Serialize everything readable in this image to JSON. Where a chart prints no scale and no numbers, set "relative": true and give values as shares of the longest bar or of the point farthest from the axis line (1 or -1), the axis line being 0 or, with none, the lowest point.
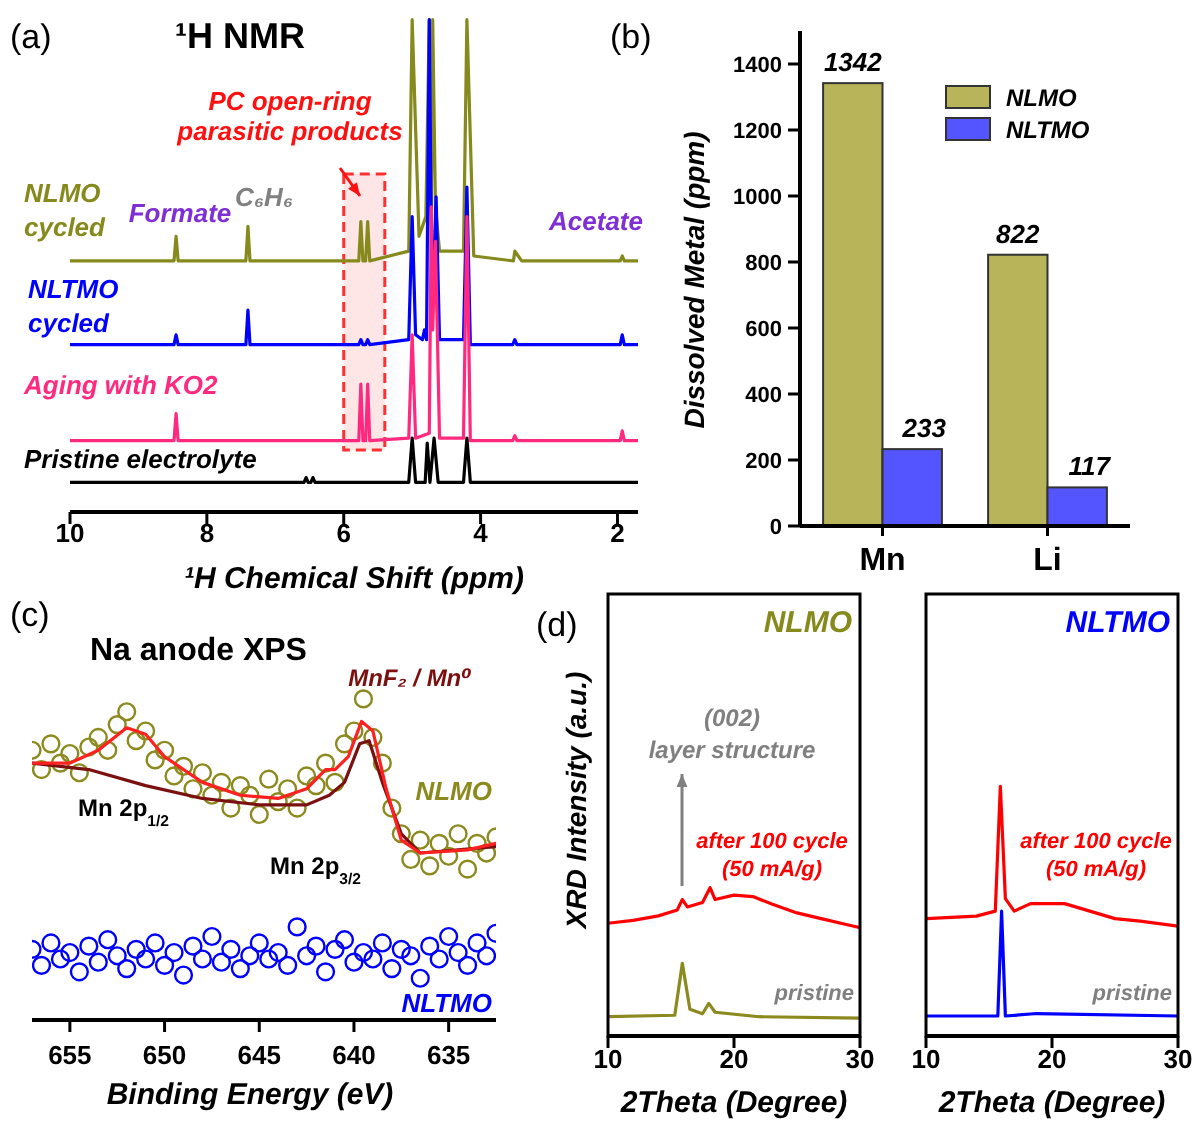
{
  "chart_data": [
    {
      "type": "line",
      "title": "¹H NMR",
      "xlabel": "¹H Chemical Shift (ppm)",
      "relative": true,
      "xlim": [
        10,
        1.7
      ],
      "xticks": [
        10,
        8,
        6,
        4,
        2
      ],
      "legend": false,
      "annotations": [
        "(a)",
        "Formate",
        "C₆H₆",
        "Acetate",
        "PC open-ring parasitic products"
      ],
      "bands": [
        {
          "axis": "x",
          "from": 6.0,
          "to": 5.4,
          "color": "#ff3030"
        }
      ],
      "series": [
        {
          "name": "NLMO cycled",
          "color": "#868a1c",
          "x": [
            10,
            8.48,
            8.45,
            8.42,
            7.43,
            7.4,
            7.37,
            5.78,
            5.75,
            5.72,
            5.68,
            5.65,
            5.62,
            5.05,
            5.0,
            4.9,
            4.8,
            4.75,
            4.72,
            4.7,
            4.66,
            4.6,
            4.25,
            4.2,
            4.1,
            3.52,
            3.5,
            3.45,
            3.4,
            1.96,
            1.93,
            1.9,
            1.7
          ],
          "values": [
            0.51,
            0.51,
            0.56,
            0.51,
            0.51,
            0.58,
            0.51,
            0.51,
            0.59,
            0.51,
            0.51,
            0.59,
            0.51,
            0.53,
            1,
            0.56,
            0.6,
            1,
            0.62,
            1,
            0.62,
            0.53,
            0.53,
            1,
            0.52,
            0.51,
            0.53,
            0.52,
            0.51,
            0.51,
            0.52,
            0.51,
            0.51
          ]
        },
        {
          "name": "NLTMO cycled",
          "color": "#0000ff",
          "x": [
            10,
            8.48,
            8.45,
            8.42,
            7.43,
            7.4,
            7.37,
            5.78,
            5.75,
            5.72,
            5.68,
            5.65,
            5.62,
            5.05,
            5.0,
            4.95,
            4.85,
            4.82,
            4.79,
            4.75,
            4.71,
            4.65,
            4.6,
            4.25,
            4.2,
            4.15,
            3.53,
            3.5,
            3.47,
            1.96,
            1.93,
            1.9,
            1.7
          ],
          "values": [
            0.34,
            0.34,
            0.36,
            0.34,
            0.34,
            0.41,
            0.34,
            0.34,
            0.35,
            0.34,
            0.34,
            0.35,
            0.34,
            0.35,
            0.6,
            0.36,
            0.35,
            0.37,
            0.35,
            1,
            0.4,
            0.64,
            0.35,
            0.35,
            0.66,
            0.34,
            0.34,
            0.35,
            0.34,
            0.34,
            0.36,
            0.34,
            0.34
          ]
        },
        {
          "name": "Aging with KO2",
          "color": "#ff2a80",
          "x": [
            10,
            8.48,
            8.45,
            8.42,
            5.78,
            5.75,
            5.72,
            5.68,
            5.65,
            5.62,
            5.05,
            5.0,
            4.95,
            4.75,
            4.72,
            4.7,
            4.66,
            4.6,
            4.25,
            4.2,
            4.15,
            3.53,
            3.5,
            3.47,
            1.96,
            1.93,
            1.9,
            1.7
          ],
          "values": [
            0.145,
            0.145,
            0.2,
            0.145,
            0.145,
            0.26,
            0.145,
            0.145,
            0.26,
            0.145,
            0.15,
            0.36,
            0.15,
            0.16,
            0.62,
            0.37,
            0.55,
            0.15,
            0.15,
            0.6,
            0.145,
            0.145,
            0.155,
            0.145,
            0.145,
            0.165,
            0.145,
            0.145
          ]
        },
        {
          "name": "Pristine electrolyte",
          "color": "#000000",
          "x": [
            10,
            6.58,
            6.55,
            6.52,
            6.48,
            6.45,
            6.42,
            5.05,
            5.0,
            4.95,
            4.81,
            4.78,
            4.74,
            4.68,
            4.62,
            4.25,
            4.2,
            4.15,
            1.7
          ],
          "values": [
            0.06,
            0.06,
            0.07,
            0.06,
            0.06,
            0.07,
            0.06,
            0.06,
            0.15,
            0.06,
            0.06,
            0.14,
            0.06,
            0.15,
            0.06,
            0.06,
            0.15,
            0.06,
            0.06
          ]
        }
      ]
    },
    {
      "type": "bar",
      "ylabel": "Dissolved Metal (ppm)",
      "categories": [
        "Mn",
        "Li"
      ],
      "ylim": [
        0,
        1500
      ],
      "yticks": [
        0,
        200,
        400,
        600,
        800,
        1000,
        1200,
        1400
      ],
      "data_labels": true,
      "legend": "top right",
      "annotations": [
        "(b)"
      ],
      "series": [
        {
          "name": "NLMO",
          "color": "#b8b45a",
          "values": [
            1342,
            822
          ]
        },
        {
          "name": "NLTMO",
          "color": "#5555ff",
          "values": [
            233,
            117
          ]
        }
      ]
    },
    {
      "type": "scatter",
      "title": "Na anode XPS",
      "xlabel": "Binding Energy (eV)",
      "relative": true,
      "xlim": [
        657,
        632.5
      ],
      "xticks": [
        655,
        650,
        645,
        640,
        635
      ],
      "annotations": [
        "(c)",
        "MnF₂ / Mn⁰",
        "Mn 2p$_{1/2}$",
        "Mn 2p$_{3/2}$"
      ],
      "x": [
        657.0,
        656.5,
        656.0,
        655.5,
        655.0,
        654.5,
        654.0,
        653.5,
        653.0,
        652.5,
        652.0,
        651.5,
        651.0,
        650.5,
        650.0,
        649.5,
        649.0,
        648.5,
        648.0,
        647.5,
        647.0,
        646.5,
        646.0,
        645.5,
        645.0,
        644.5,
        644.0,
        643.5,
        643.0,
        642.5,
        642.0,
        641.5,
        641.0,
        640.5,
        640.0,
        639.5,
        639.0,
        638.5,
        638.0,
        637.5,
        637.0,
        636.5,
        636.0,
        635.5,
        635.0,
        634.5,
        634.0,
        633.5,
        633.0,
        632.5
      ],
      "series": [
        {
          "name": "NLMO",
          "color": "#8c8a1e",
          "marker": "circle",
          "values": [
            0.84,
            0.78,
            0.86,
            0.8,
            0.83,
            0.77,
            0.85,
            0.88,
            0.84,
            0.92,
            0.96,
            0.87,
            0.9,
            0.81,
            0.84,
            0.76,
            0.79,
            0.72,
            0.77,
            0.7,
            0.74,
            0.66,
            0.73,
            0.7,
            0.64,
            0.75,
            0.68,
            0.72,
            0.66,
            0.76,
            0.73,
            0.8,
            0.74,
            0.86,
            0.9,
            1.0,
            0.88,
            0.8,
            0.66,
            0.58,
            0.5,
            0.56,
            0.48,
            0.55,
            0.51,
            0.58,
            0.47,
            0.55,
            0.52,
            0.57
          ]
        },
        {
          "name": "NLTMO",
          "color": "#0000ff",
          "marker": "circle",
          "values": [
            0.22,
            0.17,
            0.24,
            0.19,
            0.21,
            0.15,
            0.23,
            0.18,
            0.25,
            0.2,
            0.16,
            0.22,
            0.19,
            0.24,
            0.17,
            0.21,
            0.14,
            0.23,
            0.19,
            0.26,
            0.18,
            0.22,
            0.16,
            0.2,
            0.24,
            0.19,
            0.21,
            0.17,
            0.29,
            0.2,
            0.23,
            0.15,
            0.22,
            0.25,
            0.18,
            0.21,
            0.19,
            0.24,
            0.16,
            0.22,
            0.2,
            0.13,
            0.23,
            0.19,
            0.26,
            0.21,
            0.17,
            0.24,
            0.2,
            0.27
          ]
        },
        {
          "type": "line",
          "color": "#7b1010",
          "x": [
            657,
            654,
            651,
            648,
            645,
            642.5,
            641.3,
            640.5,
            639.7,
            639.2,
            638.5,
            637.5,
            636.5,
            632.5
          ],
          "values": [
            0.8,
            0.78,
            0.73,
            0.69,
            0.67,
            0.67,
            0.7,
            0.74,
            0.86,
            0.87,
            0.74,
            0.58,
            0.52,
            0.54
          ]
        },
        {
          "type": "line",
          "color": "#ff2020",
          "x": [
            657,
            655,
            653.5,
            652,
            651,
            650,
            648,
            646,
            644,
            642.5,
            641.5,
            641,
            640.3,
            639.6,
            639,
            638.3,
            637.5,
            636.5,
            634,
            632.5
          ],
          "values": [
            0.8,
            0.8,
            0.84,
            0.91,
            0.89,
            0.82,
            0.74,
            0.7,
            0.69,
            0.72,
            0.78,
            0.78,
            0.82,
            0.93,
            0.9,
            0.72,
            0.56,
            0.52,
            0.53,
            0.55
          ]
        }
      ]
    },
    {
      "type": "line",
      "title": "NLMO",
      "xlabel": "2Theta (Degree)",
      "ylabel": "XRD Intensity (a.u.)",
      "relative": true,
      "xlim": [
        10,
        30
      ],
      "xticks": [
        10,
        20,
        30
      ],
      "annotations": [
        "(d)",
        "(002) layer structure"
      ],
      "series": [
        {
          "name": "after 100 cycle (50 mA/g)",
          "color": "#ff0000",
          "x": [
            10,
            12,
            14,
            15.5,
            15.9,
            16.3,
            17.5,
            18.1,
            18.5,
            20,
            21.5,
            23,
            25,
            27,
            29,
            30
          ],
          "values": [
            0.76,
            0.78,
            0.81,
            0.85,
            0.92,
            0.87,
            0.9,
            1.0,
            0.92,
            0.95,
            0.94,
            0.89,
            0.83,
            0.79,
            0.75,
            0.73
          ]
        },
        {
          "name": "pristine",
          "color": "#8c8a1e",
          "x": [
            10,
            15.3,
            15.9,
            16.5,
            17.5,
            18,
            18.5,
            22,
            30
          ],
          "values": [
            0.13,
            0.14,
            0.49,
            0.18,
            0.15,
            0.22,
            0.16,
            0.13,
            0.12
          ]
        }
      ]
    },
    {
      "type": "line",
      "title": "NLTMO",
      "xlabel": "2Theta (Degree)",
      "relative": true,
      "xlim": [
        10,
        30
      ],
      "xticks": [
        10,
        20,
        30
      ],
      "series": [
        {
          "name": "after 100 cycle (50 mA/g)",
          "color": "#ff0000",
          "x": [
            10,
            14,
            15.5,
            15.9,
            16.3,
            17,
            18.3,
            20,
            21,
            23,
            25,
            27,
            30
          ],
          "values": [
            0.47,
            0.48,
            0.5,
            1.0,
            0.55,
            0.5,
            0.53,
            0.53,
            0.53,
            0.5,
            0.47,
            0.46,
            0.44
          ]
        },
        {
          "name": "pristine",
          "color": "#0000ff",
          "x": [
            10,
            15.7,
            16.0,
            16.3,
            18.8,
            30
          ],
          "values": [
            0.08,
            0.08,
            0.5,
            0.08,
            0.09,
            0.08
          ]
        }
      ]
    }
  ]
}
